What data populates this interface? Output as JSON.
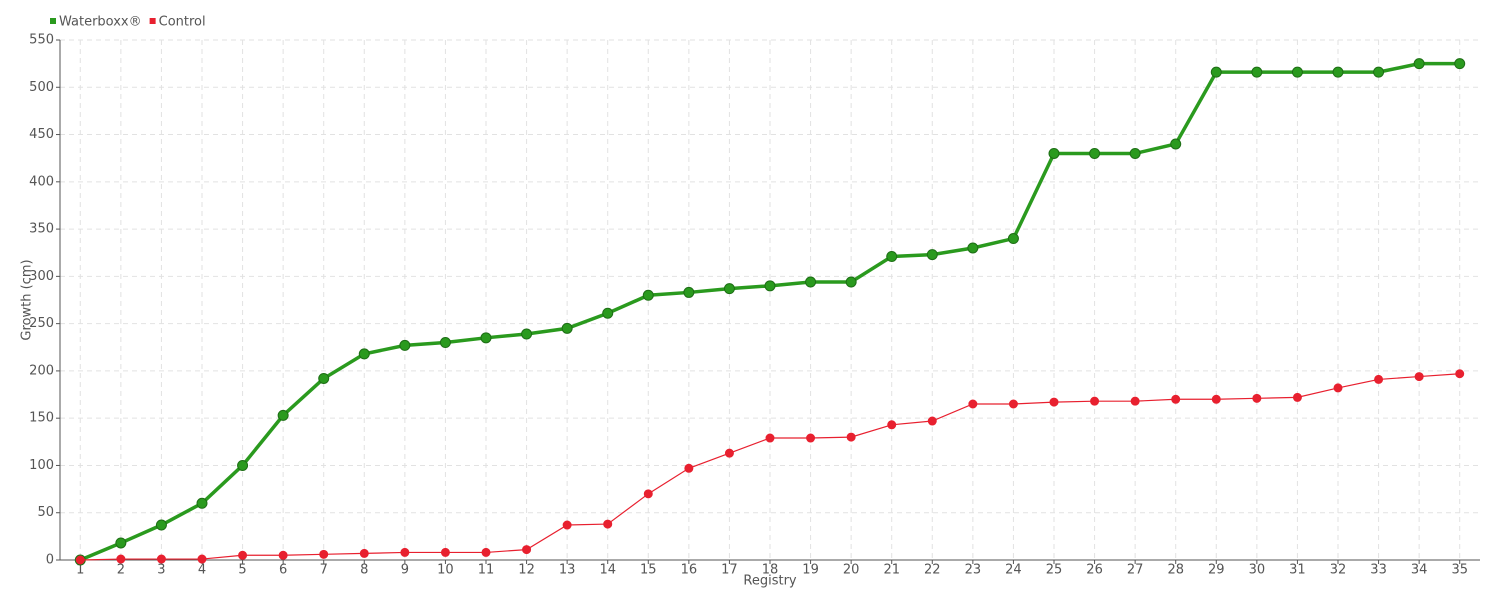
{
  "chart_data": {
    "type": "line",
    "x_label": "Registry",
    "y_label": "Growth (cm)",
    "x": [
      1,
      2,
      3,
      4,
      5,
      6,
      7,
      8,
      9,
      10,
      11,
      12,
      13,
      14,
      15,
      16,
      17,
      18,
      19,
      20,
      21,
      22,
      23,
      24,
      25,
      26,
      27,
      28,
      29,
      30,
      31,
      32,
      33,
      34,
      35
    ],
    "xlim": [
      0.5,
      35.5
    ],
    "ylim": [
      0,
      550
    ],
    "yticks": [
      0,
      50,
      100,
      150,
      200,
      250,
      300,
      350,
      400,
      450,
      500,
      550
    ],
    "grid": true,
    "legend": "top-left",
    "series": [
      {
        "name": "Waterboxx®",
        "color": "#2a9a1e",
        "values": [
          0,
          18,
          37,
          60,
          100,
          153,
          192,
          218,
          227,
          230,
          235,
          239,
          245,
          261,
          280,
          283,
          287,
          290,
          294,
          294,
          321,
          323,
          330,
          340,
          430,
          430,
          430,
          440,
          516,
          516,
          516,
          516,
          516,
          525,
          525
        ]
      },
      {
        "name": "Control",
        "color": "#e8202f",
        "values": [
          0,
          1,
          1,
          1,
          5,
          5,
          6,
          7,
          8,
          8,
          8,
          11,
          37,
          38,
          70,
          97,
          113,
          129,
          129,
          130,
          143,
          147,
          165,
          165,
          167,
          168,
          168,
          170,
          170,
          171,
          172,
          182,
          191,
          194,
          197
        ]
      }
    ]
  }
}
